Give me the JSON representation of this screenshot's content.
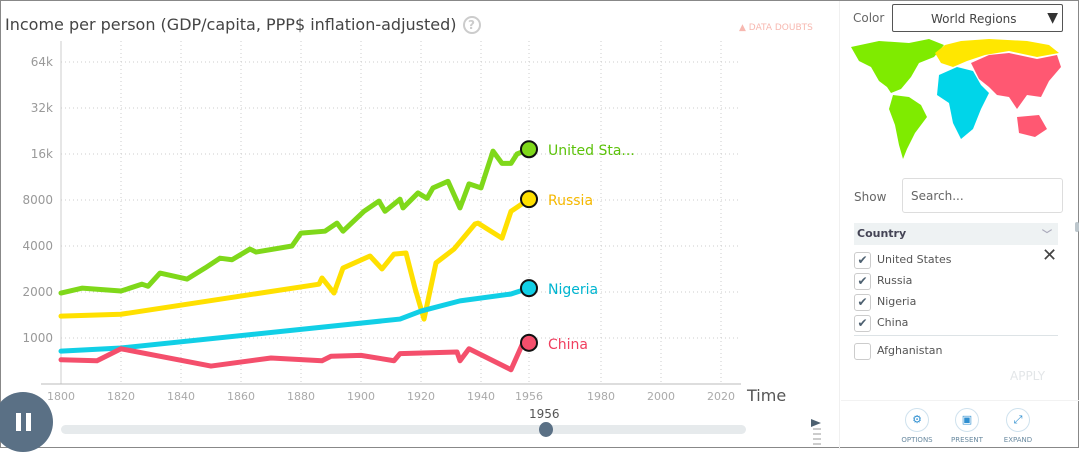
{
  "header": {
    "title": "Income per person (GDP/capita, PPP$ inflation-adjusted)",
    "help_icon": "?",
    "data_doubts": "DATA DOUBTS"
  },
  "chart_data": {
    "type": "line",
    "title": "Income per person (GDP/capita, PPP$ inflation-adjusted)",
    "xlabel": "Time",
    "ylabel": "Income per person (GDP/capita, PPP$ inflation-adjusted)",
    "yscale": "log",
    "xlim": [
      1800,
      2022
    ],
    "ylim": [
      500,
      90000
    ],
    "x_ticks": [
      "1800",
      "1820",
      "1840",
      "1860",
      "1880",
      "1900",
      "1920",
      "1940",
      "1956",
      "1980",
      "2000",
      "2020"
    ],
    "y_ticks": [
      {
        "value": 1000,
        "label": "1000"
      },
      {
        "value": 2000,
        "label": "2000"
      },
      {
        "value": 4000,
        "label": "4000"
      },
      {
        "value": 8000,
        "label": "8000"
      },
      {
        "value": 16000,
        "label": "16k"
      },
      {
        "value": 32000,
        "label": "32k"
      },
      {
        "value": 64000,
        "label": "64k"
      }
    ],
    "grid": true,
    "series": [
      {
        "name": "United States",
        "label": "United Sta...",
        "color": "#7fd81a",
        "label_color": "#5cc20a",
        "x": [
          1800,
          1807,
          1820,
          1827,
          1829,
          1833,
          1842,
          1848,
          1853,
          1857,
          1863,
          1865,
          1877,
          1880,
          1888,
          1892,
          1894,
          1901,
          1906,
          1908,
          1913,
          1914,
          1919,
          1922,
          1924,
          1929,
          1933,
          1936,
          1940,
          1944,
          1947,
          1950,
          1952,
          1956
        ],
        "y": [
          1970,
          2120,
          2030,
          2250,
          2180,
          2660,
          2430,
          2870,
          3330,
          3250,
          3820,
          3650,
          4000,
          4860,
          5000,
          5650,
          5000,
          6750,
          7870,
          6750,
          8100,
          7100,
          8900,
          8200,
          9600,
          10600,
          7100,
          10200,
          9600,
          16700,
          13900,
          13900,
          16000,
          17200
        ]
      },
      {
        "name": "Russia",
        "label": "Russia",
        "color": "#ffe000",
        "label_color": "#f5b800",
        "x": [
          1800,
          1820,
          1886,
          1887,
          1891,
          1894,
          1903,
          1907,
          1911,
          1915,
          1918,
          1921,
          1925,
          1931,
          1938,
          1939,
          1947,
          1950,
          1956
        ],
        "y": [
          1390,
          1430,
          2250,
          2470,
          1970,
          2870,
          3440,
          2830,
          3540,
          3600,
          2120,
          1330,
          3100,
          3820,
          5570,
          5650,
          4500,
          6750,
          8100
        ]
      },
      {
        "name": "Nigeria",
        "label": "Nigeria",
        "color": "#11cfe6",
        "label_color": "#00b5d0",
        "x": [
          1800,
          1820,
          1913,
          1920,
          1933,
          1950,
          1956
        ],
        "y": [
          820,
          860,
          1330,
          1500,
          1750,
          1940,
          2120
        ]
      },
      {
        "name": "China",
        "label": "China",
        "color": "#f44f6c",
        "label_color": "#f04060",
        "x": [
          1800,
          1812,
          1820,
          1850,
          1870,
          1887,
          1890,
          1900,
          1911,
          1913,
          1932,
          1933,
          1936,
          1950,
          1954,
          1956
        ],
        "y": [
          720,
          710,
          850,
          655,
          740,
          710,
          760,
          770,
          710,
          790,
          810,
          710,
          850,
          620,
          930,
          930
        ]
      }
    ]
  },
  "timeslider": {
    "value": "1956",
    "play_state": "playing",
    "pause_icon": "pause-icon"
  },
  "panel": {
    "color_label": "Color",
    "color_value": "World Regions",
    "region_colors": {
      "americas": "#7feb00",
      "europe": "#ffe700",
      "africa": "#00d5e9",
      "asia": "#ff5872"
    },
    "show_label": "Show",
    "search_placeholder": "Search...",
    "list_header": "Country",
    "countries": [
      {
        "name": "United States",
        "checked": true
      },
      {
        "name": "Russia",
        "checked": true
      },
      {
        "name": "Nigeria",
        "checked": true
      },
      {
        "name": "China",
        "checked": true
      },
      {
        "name": "Afghanistan",
        "checked": false
      }
    ],
    "apply": "APPLY",
    "buttons": {
      "options": "OPTIONS",
      "present": "PRESENT",
      "expand": "EXPAND"
    }
  }
}
